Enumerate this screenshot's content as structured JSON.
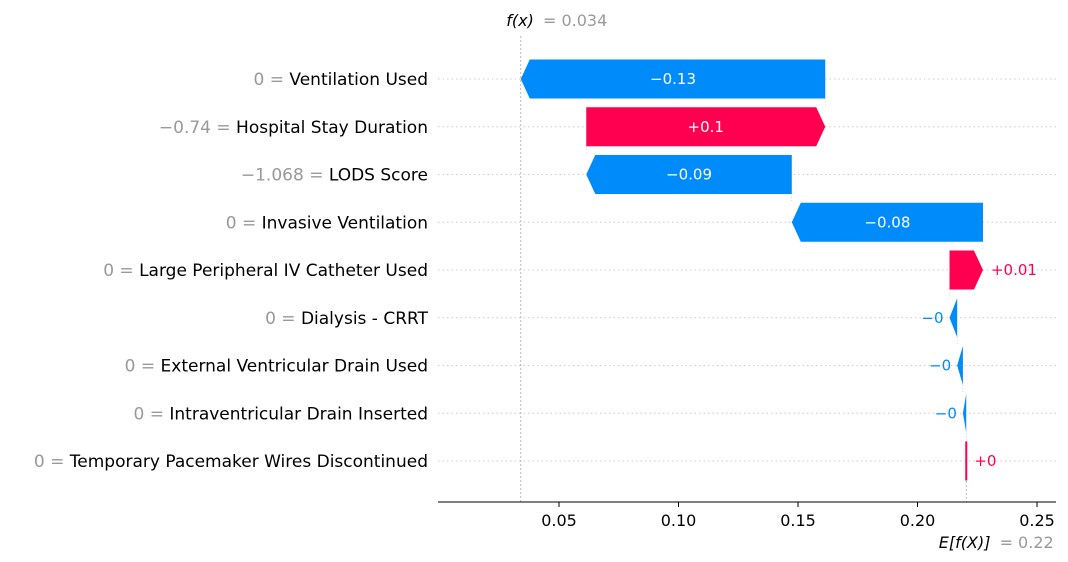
{
  "chart_data": {
    "type": "waterfall",
    "title": "",
    "xlabel": "",
    "ylabel": "",
    "xlim": [
      0,
      0.26
    ],
    "x_ticks": [
      0.05,
      0.1,
      0.15,
      0.2,
      0.25
    ],
    "x_tick_labels": [
      "0.05",
      "0.10",
      "0.15",
      "0.20",
      "0.25"
    ],
    "base_value": 0.2204,
    "base_label": "E[f(X)]",
    "base_value_text": "= 0.22",
    "output_value": 0.034,
    "output_label": "f(x)",
    "output_value_text": "= 0.034",
    "positive_color": "#ff0051",
    "negative_color": "#008bfb",
    "features": [
      {
        "name": "Ventilation Used",
        "value_text": "0",
        "start": 0.1614,
        "end": 0.034,
        "label": "−0.13"
      },
      {
        "name": "Hospital Stay Duration",
        "value_text": "−0.74",
        "start": 0.0614,
        "end": 0.1614,
        "label": "+0.1"
      },
      {
        "name": "LODS Score",
        "value_text": "−1.068",
        "start": 0.1474,
        "end": 0.0614,
        "label": "−0.09"
      },
      {
        "name": "Invasive Ventilation",
        "value_text": "0",
        "start": 0.2274,
        "end": 0.1474,
        "label": "−0.08"
      },
      {
        "name": "Large Peripheral IV Catheter Used",
        "value_text": "0",
        "start": 0.2134,
        "end": 0.2274,
        "label": "+0.01"
      },
      {
        "name": "Dialysis - CRRT",
        "value_text": "0",
        "start": 0.2166,
        "end": 0.2134,
        "label": "−0"
      },
      {
        "name": "External Ventricular Drain Used",
        "value_text": "0",
        "start": 0.219,
        "end": 0.2166,
        "label": "−0"
      },
      {
        "name": "Intraventricular Drain Inserted",
        "value_text": "0",
        "start": 0.2204,
        "end": 0.219,
        "label": "−0"
      },
      {
        "name": "Temporary Pacemaker Wires Discontinued",
        "value_text": "0",
        "start": 0.22,
        "end": 0.2204,
        "label": "+0"
      }
    ]
  }
}
